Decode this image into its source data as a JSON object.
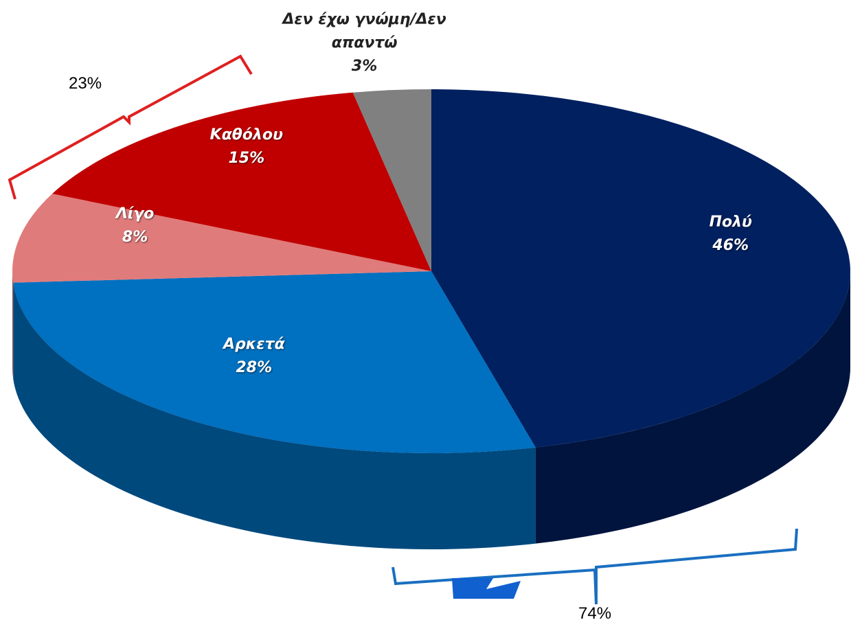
{
  "chart_data": {
    "type": "pie",
    "categories": [
      "Πολύ",
      "Αρκετά",
      "Λίγο",
      "Καθόλου",
      "Δεν έχω γνώμη/Δεν απαντώ"
    ],
    "values": [
      46,
      28,
      8,
      15,
      3
    ],
    "value_labels": [
      "46%",
      "28%",
      "8%",
      "15%",
      "3%"
    ],
    "colors": [
      "#002060",
      "#0070c0",
      "#e07b7b",
      "#c00000",
      "#808080"
    ],
    "annotations": [
      "23%",
      "74%"
    ]
  }
}
